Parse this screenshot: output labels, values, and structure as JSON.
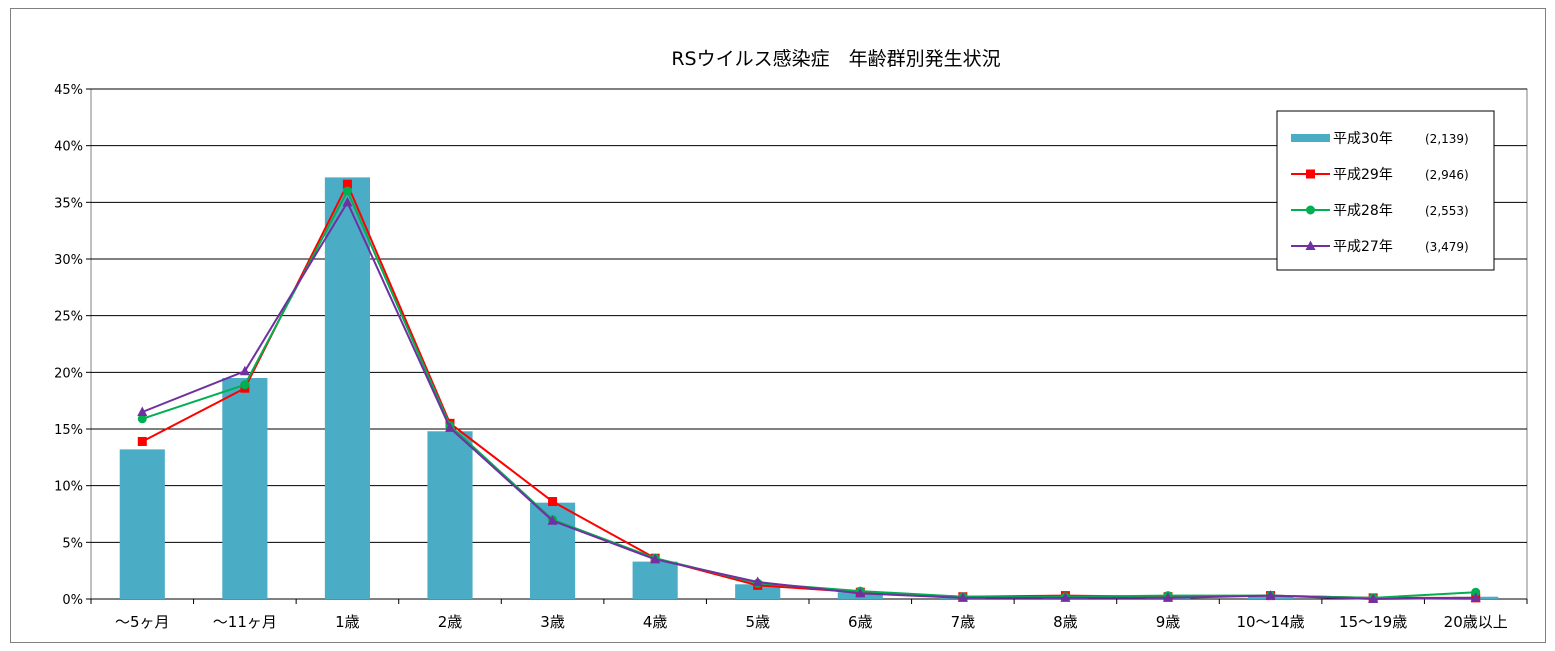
{
  "chart_data": {
    "type": "bar",
    "title": "RSウイルス感染症　年齢群別発生状況",
    "categories": [
      "～5ヶ月",
      "～11ヶ月",
      "1歳",
      "2歳",
      "3歳",
      "4歳",
      "5歳",
      "6歳",
      "7歳",
      "8歳",
      "9歳",
      "10～14歳",
      "15～19歳",
      "20歳以上"
    ],
    "ylim": [
      0,
      45
    ],
    "yticks": [
      "0%",
      "5%",
      "10%",
      "15%",
      "20%",
      "25%",
      "30%",
      "35%",
      "40%",
      "45%"
    ],
    "ytick_values": [
      0,
      5,
      10,
      15,
      20,
      25,
      30,
      35,
      40,
      45
    ],
    "grid": "horizontal",
    "legend_position": "top-right",
    "series": [
      {
        "label": "平成30年",
        "count": "(2,139)",
        "kind": "bar",
        "color": "#4bacc6",
        "values": [
          13.2,
          19.5,
          37.2,
          14.8,
          8.5,
          3.3,
          1.3,
          0.6,
          0.1,
          0.2,
          0.1,
          0.2,
          0.1,
          0.2
        ]
      },
      {
        "label": "平成29年",
        "count": "(2,946)",
        "kind": "line",
        "marker": "square",
        "color": "#ff0000",
        "values": [
          13.9,
          18.6,
          36.6,
          15.5,
          8.6,
          3.6,
          1.2,
          0.6,
          0.2,
          0.3,
          0.2,
          0.3,
          0.1,
          0.1
        ]
      },
      {
        "label": "平成28年",
        "count": "(2,553)",
        "kind": "line",
        "marker": "circle",
        "color": "#00b050",
        "values": [
          15.9,
          18.9,
          36.0,
          15.3,
          7.0,
          3.6,
          1.4,
          0.7,
          0.2,
          0.2,
          0.3,
          0.3,
          0.1,
          0.6
        ]
      },
      {
        "label": "平成27年",
        "count": "(3,479)",
        "kind": "line",
        "marker": "triangle",
        "color": "#7030a0",
        "values": [
          16.5,
          20.1,
          35.0,
          15.1,
          6.9,
          3.5,
          1.5,
          0.5,
          0.1,
          0.1,
          0.1,
          0.3,
          0.0,
          0.1
        ]
      }
    ]
  }
}
